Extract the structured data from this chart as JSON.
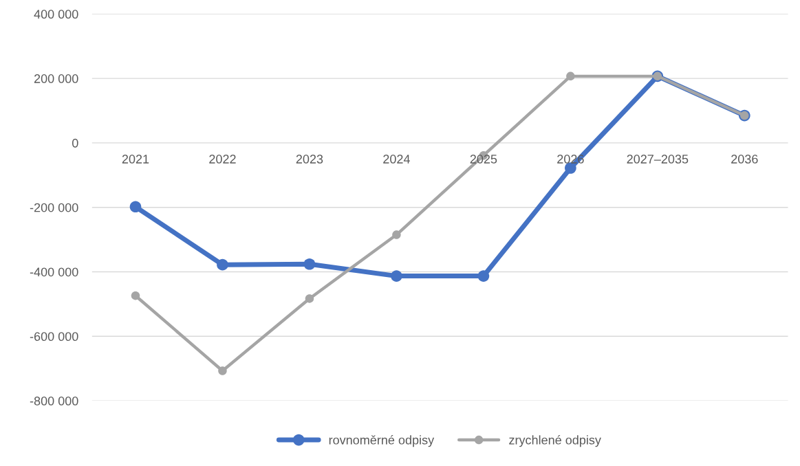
{
  "chart_data": {
    "type": "line",
    "categories": [
      "2021",
      "2022",
      "2023",
      "2024",
      "2025",
      "2026",
      "2027–2035",
      "2036"
    ],
    "series": [
      {
        "name": "rovnoměrné odpisy",
        "color": "#4472c4",
        "values": [
          -198000,
          -378000,
          -376000,
          -413000,
          -413000,
          -78000,
          207000,
          85000
        ]
      },
      {
        "name": "zrychlené odpisy",
        "color": "#a5a5a5",
        "values": [
          -474000,
          -707000,
          -483000,
          -285000,
          -39000,
          207000,
          207000,
          85000
        ]
      }
    ],
    "ylim": [
      -800000,
      400000
    ],
    "yticks": [
      {
        "value": -800000,
        "label": "-800 000"
      },
      {
        "value": -600000,
        "label": "-600 000"
      },
      {
        "value": -400000,
        "label": "-400 000"
      },
      {
        "value": -200000,
        "label": "-200 000"
      },
      {
        "value": 0,
        "label": "0"
      },
      {
        "value": 200000,
        "label": "200 000"
      },
      {
        "value": 400000,
        "label": "400 000"
      }
    ],
    "grid": "y",
    "legend": "bottom",
    "marker": "circle",
    "line_style": "solid"
  }
}
